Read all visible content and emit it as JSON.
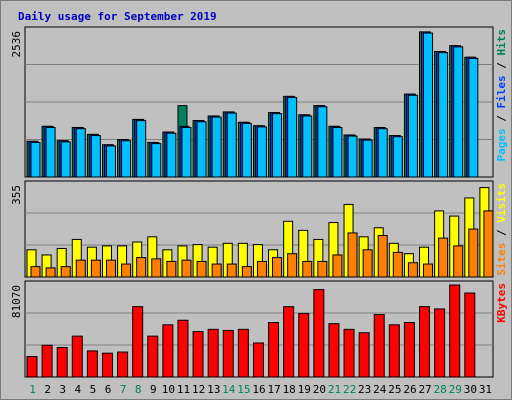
{
  "chart_data": {
    "type": "bar",
    "title": "Daily usage for September 2019",
    "categories": [
      "1",
      "2",
      "3",
      "4",
      "5",
      "6",
      "7",
      "8",
      "9",
      "10",
      "11",
      "12",
      "13",
      "14",
      "15",
      "16",
      "17",
      "18",
      "19",
      "20",
      "21",
      "22",
      "23",
      "24",
      "25",
      "26",
      "27",
      "28",
      "29",
      "30",
      "31"
    ],
    "weekend_days": [
      "1",
      "7",
      "8",
      "14",
      "15",
      "21",
      "22",
      "28",
      "29"
    ],
    "panels": [
      {
        "id": "hits-files-pages",
        "max_label": "2536",
        "ylim": [
          0,
          2536
        ],
        "legend": [
          {
            "label": "Pages",
            "color": "#00c0ff"
          },
          {
            "label": "Files",
            "color": "#0040ff"
          },
          {
            "label": "Hits",
            "color": "#00805c"
          }
        ],
        "separator": " / ",
        "series": [
          {
            "name": "Hits",
            "color": "#00805c",
            "values": [
              620,
              880,
              630,
              860,
              740,
              560,
              650,
              1000,
              600,
              780,
              1240,
              980,
              1060,
              1130,
              950,
              890,
              1120,
              1400,
              1080,
              1240,
              880,
              730,
              660,
              860,
              720,
              1440,
              2520,
              2180,
              2280,
              2080,
              0
            ]
          },
          {
            "name": "Files",
            "color": "#0040ff",
            "values": [
              620,
              880,
              630,
              860,
              740,
              560,
              650,
              1000,
              600,
              780,
              880,
              980,
              1060,
              1130,
              950,
              890,
              1120,
              1400,
              1080,
              1240,
              880,
              730,
              660,
              860,
              720,
              1440,
              2520,
              2180,
              2280,
              2080,
              0
            ]
          },
          {
            "name": "Pages",
            "color": "#00c0ff",
            "values": [
              600,
              860,
              610,
              840,
              720,
              540,
              630,
              980,
              580,
              760,
              860,
              960,
              1040,
              1110,
              930,
              870,
              1100,
              1380,
              1060,
              1220,
              860,
              710,
              640,
              840,
              700,
              1420,
              2500,
              2160,
              2260,
              2060,
              0
            ]
          }
        ]
      },
      {
        "id": "visits-sites",
        "max_label": "355",
        "ylim": [
          0,
          355
        ],
        "legend": [
          {
            "label": "Sites",
            "color": "#ff8000"
          },
          {
            "label": "Visits",
            "color": "#ffff00"
          }
        ],
        "separator": " / ",
        "series": [
          {
            "name": "Visits",
            "color": "#ffff00",
            "values": [
              105,
              85,
              110,
              145,
              115,
              120,
              120,
              135,
              155,
              105,
              120,
              125,
              115,
              130,
              130,
              125,
              105,
              215,
              180,
              145,
              210,
              280,
              155,
              190,
              130,
              90,
              115,
              255,
              235,
              305,
              345
            ]
          },
          {
            "name": "Sites",
            "color": "#ff8000",
            "values": [
              40,
              35,
              40,
              65,
              65,
              65,
              50,
              75,
              70,
              60,
              65,
              60,
              50,
              50,
              40,
              60,
              75,
              90,
              60,
              60,
              85,
              170,
              105,
              160,
              95,
              55,
              50,
              150,
              120,
              185,
              255
            ]
          }
        ]
      },
      {
        "id": "kbytes",
        "max_label": "81070",
        "ylim": [
          0,
          81070
        ],
        "legend": [
          {
            "label": "KBytes",
            "color": "#ff0000"
          }
        ],
        "separator": "",
        "series": [
          {
            "name": "KBytes",
            "color": "#ff0000",
            "values": [
              18000,
              28000,
              26000,
              36000,
              23000,
              21000,
              22000,
              62000,
              36000,
              46000,
              50000,
              40000,
              42000,
              41000,
              42000,
              30000,
              48000,
              62000,
              56000,
              77000,
              47000,
              42000,
              39000,
              55000,
              46000,
              48000,
              62000,
              60000,
              81070,
              74000,
              0
            ]
          }
        ]
      }
    ]
  }
}
